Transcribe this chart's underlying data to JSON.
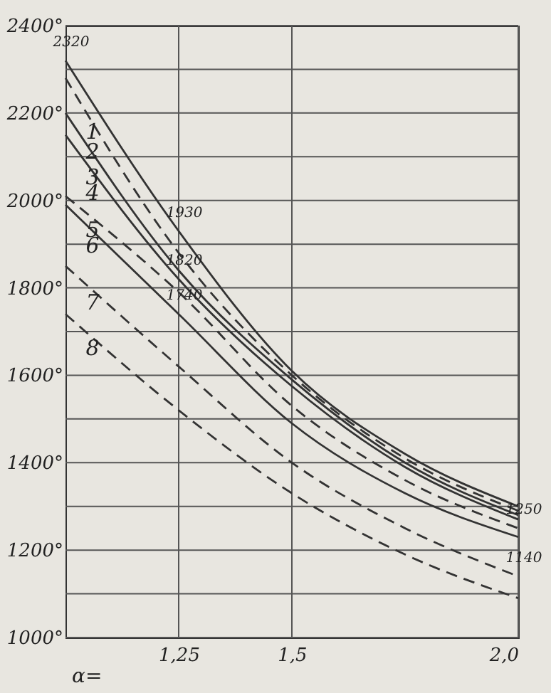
{
  "chart_data": {
    "type": "line",
    "xlabel": "α=",
    "xlim": [
      1.0,
      2.0
    ],
    "xticks": [
      {
        "value": 1.25,
        "label": "1,25"
      },
      {
        "value": 1.5,
        "label": "1,5"
      },
      {
        "value": 2.0,
        "label": "2,0"
      }
    ],
    "ylim": [
      1000,
      2400
    ],
    "yticks": [
      {
        "value": 1000,
        "label": "1000°"
      },
      {
        "value": 1100,
        "label": null
      },
      {
        "value": 1200,
        "label": "1200°"
      },
      {
        "value": 1300,
        "label": null
      },
      {
        "value": 1400,
        "label": "1400°"
      },
      {
        "value": 1500,
        "label": null
      },
      {
        "value": 1600,
        "label": "1600°"
      },
      {
        "value": 1700,
        "label": null
      },
      {
        "value": 1800,
        "label": "1800°"
      },
      {
        "value": 1900,
        "label": null
      },
      {
        "value": 2000,
        "label": "2000°"
      },
      {
        "value": 2100,
        "label": null
      },
      {
        "value": 2200,
        "label": "2200°"
      },
      {
        "value": 2300,
        "label": null
      },
      {
        "value": 2400,
        "label": "2400°"
      }
    ],
    "grid": true,
    "legend": false,
    "x": [
      1.0,
      1.25,
      1.5,
      1.75,
      2.0
    ],
    "series": [
      {
        "name": "1",
        "color": "#333333",
        "line_style": "solid",
        "values": [
          2320,
          1930,
          1610,
          1420,
          1300
        ]
      },
      {
        "name": "2",
        "color": "#333333",
        "line_style": "dashed",
        "values": [
          2280,
          1880,
          1600,
          1410,
          1290
        ]
      },
      {
        "name": "3",
        "color": "#333333",
        "line_style": "solid",
        "values": [
          2200,
          1840,
          1590,
          1400,
          1280
        ]
      },
      {
        "name": "4",
        "color": "#333333",
        "line_style": "solid",
        "values": [
          2150,
          1820,
          1575,
          1390,
          1270
        ]
      },
      {
        "name": "5",
        "color": "#333333",
        "line_style": "dashed",
        "values": [
          2010,
          1790,
          1530,
          1360,
          1250
        ]
      },
      {
        "name": "6",
        "color": "#333333",
        "line_style": "solid",
        "values": [
          1990,
          1740,
          1490,
          1330,
          1230
        ]
      },
      {
        "name": "7",
        "color": "#333333",
        "line_style": "dashed",
        "values": [
          1850,
          1620,
          1400,
          1250,
          1140
        ]
      },
      {
        "name": "8",
        "color": "#333333",
        "line_style": "dashed",
        "values": [
          1740,
          1520,
          1330,
          1190,
          1090
        ]
      }
    ],
    "annotations": [
      {
        "text": "2320",
        "x": 1.0,
        "y": 2320
      },
      {
        "text": "1930",
        "x": 1.25,
        "y": 1930
      },
      {
        "text": "1820",
        "x": 1.25,
        "y": 1820
      },
      {
        "text": "1740",
        "x": 1.25,
        "y": 1740
      },
      {
        "text": "1250",
        "x": 2.0,
        "y": 1250
      },
      {
        "text": "1140",
        "x": 2.0,
        "y": 1140
      }
    ]
  }
}
